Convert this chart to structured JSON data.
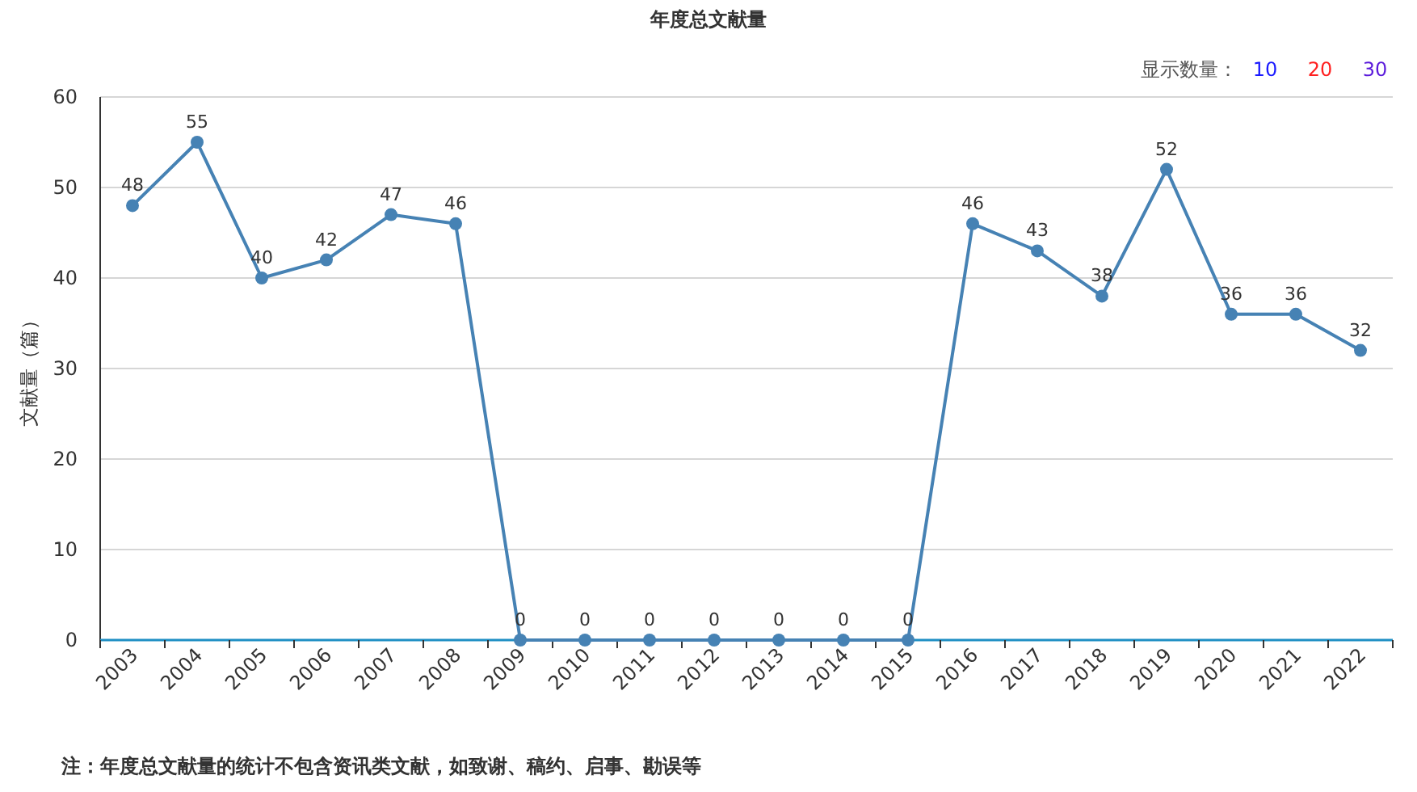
{
  "chart_data": {
    "type": "line",
    "title": "年度总文献量",
    "ylabel": "文献量（篇）",
    "categories": [
      "2003",
      "2004",
      "2005",
      "2006",
      "2007",
      "2008",
      "2009",
      "2010",
      "2011",
      "2012",
      "2013",
      "2014",
      "2015",
      "2016",
      "2017",
      "2018",
      "2019",
      "2020",
      "2021",
      "2022"
    ],
    "series": [
      {
        "color": "#4682b4",
        "values": [
          48,
          55,
          40,
          42,
          47,
          46,
          0,
          0,
          0,
          0,
          0,
          0,
          0,
          46,
          43,
          38,
          52,
          36,
          36,
          32
        ]
      }
    ],
    "ylim": [
      0,
      60
    ],
    "yticks": [
      0,
      10,
      20,
      30,
      40,
      50,
      60
    ],
    "grid": "y",
    "marker": "circle",
    "line_style": "solid",
    "data_labels": true,
    "annotations": [
      "显示数量：",
      "10",
      "20",
      "30",
      "注：年度总文献量的统计不包含资讯类文献，如致谢、稿约、启事、勘误等"
    ]
  }
}
